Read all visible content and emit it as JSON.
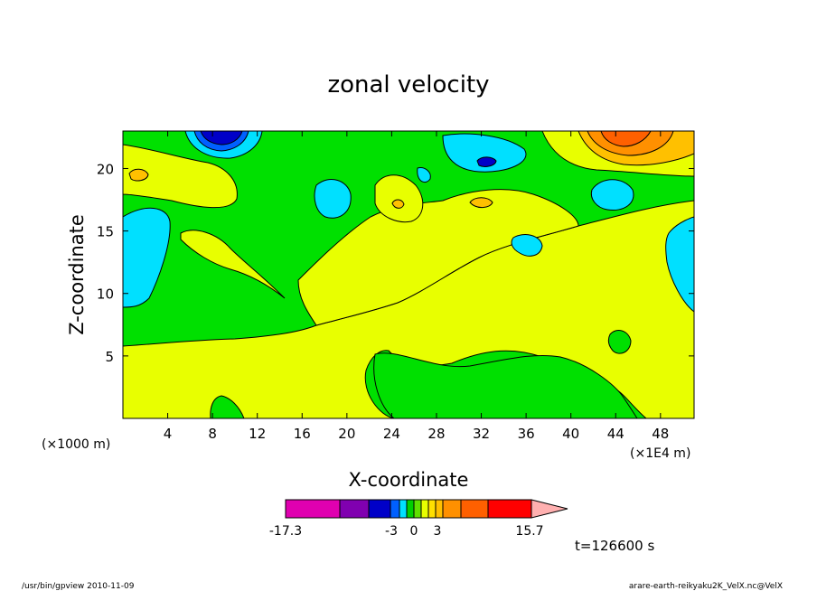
{
  "chart_data": {
    "type": "heatmap",
    "title": "zonal velocity",
    "xlabel": "X-coordinate",
    "ylabel": "Z-coordinate",
    "x_unit": "(×1E4 m)",
    "y_unit": "(×1000 m)",
    "xlim": [
      0,
      51
    ],
    "ylim": [
      0,
      23
    ],
    "x_ticks": [
      4,
      8,
      12,
      16,
      20,
      24,
      28,
      32,
      36,
      40,
      44,
      48
    ],
    "y_ticks": [
      5,
      10,
      15,
      20
    ],
    "grid": false,
    "colorbar": {
      "colors": [
        "#e000b0",
        "#8000b0",
        "#0000c8",
        "#0060ff",
        "#00e0ff",
        "#00d000",
        "#60e000",
        "#e8ff00",
        "#ffe000",
        "#ffc000",
        "#ff9000",
        "#ff6000",
        "#ff0000",
        "#ff8080",
        "#ffb0b0"
      ],
      "tick_labels": [
        "-17.3",
        "-3",
        "0",
        "3",
        "15.7"
      ],
      "extend": "max"
    },
    "time_label": "t=126600 s",
    "footer_left": "/usr/bin/gpview   2010-11-09",
    "footer_right": "arare-earth-reikyaku2K_VelX.nc@VelX"
  }
}
